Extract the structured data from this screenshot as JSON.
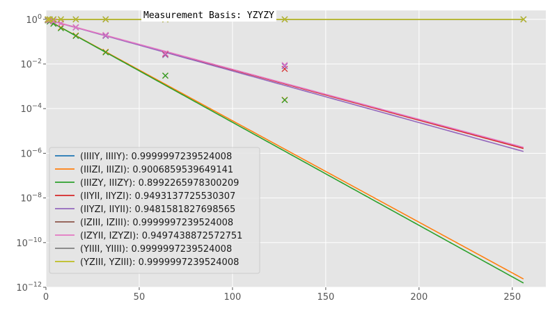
{
  "chart_data": {
    "type": "line",
    "title": "Measurement Basis: YZYZY",
    "xlabel": "",
    "ylabel": "",
    "xlim": [
      0,
      268
    ],
    "ylim": [
      1e-12,
      2.5
    ],
    "yscale": "log",
    "grid": true,
    "legend_position": "lower-left",
    "x_ticks": [
      0,
      50,
      100,
      150,
      200,
      250
    ],
    "y_ticks": [
      {
        "value": 1,
        "exp": "0"
      },
      {
        "value": 0.01,
        "exp": "−2"
      },
      {
        "value": 0.0001,
        "exp": "−4"
      },
      {
        "value": 1e-06,
        "exp": "−6"
      },
      {
        "value": 1e-08,
        "exp": "−8"
      },
      {
        "value": 1e-10,
        "exp": "−10"
      },
      {
        "value": 1e-12,
        "exp": "−12"
      }
    ],
    "y_tick_base": "10",
    "fit_x": [
      1,
      256
    ],
    "marker_x": [
      1,
      2,
      4,
      8,
      16,
      32,
      64,
      128,
      256
    ],
    "series": [
      {
        "name": "(IIIIY, IIIIY): 0.9999997239524008",
        "decay": 0.9999997239524008,
        "color": "#1f77b4",
        "markers": [
          1,
          1,
          1,
          1,
          1,
          1,
          1,
          1,
          1
        ]
      },
      {
        "name": "(IIIZI, IIIZI): 0.9006859539649141",
        "decay": 0.9006859539649141,
        "color": "#ff7f0e",
        "markers": [
          0.9,
          0.81,
          0.65,
          0.43,
          0.19,
          0.035,
          0.003,
          0.00025,
          null
        ]
      },
      {
        "name": "(IIIZY, IIIZY): 0.8992265978300209",
        "decay": 0.8992265978300209,
        "color": "#2ca02c",
        "markers": [
          0.9,
          0.8,
          0.63,
          0.4,
          0.18,
          0.033,
          0.003,
          0.00024,
          null
        ]
      },
      {
        "name": "(IIYII, IIYZI): 0.9493137725530307",
        "decay": 0.9493137725530307,
        "color": "#d62728",
        "markers": [
          0.95,
          0.9,
          0.81,
          0.66,
          0.44,
          0.19,
          0.028,
          0.006,
          null
        ]
      },
      {
        "name": "(IIYZI, IIYII): 0.9481581827698565",
        "decay": 0.9481581827698565,
        "color": "#9467bd",
        "markers": [
          0.95,
          0.9,
          0.8,
          0.65,
          0.43,
          0.18,
          0.025,
          0.008,
          null
        ]
      },
      {
        "name": "(IZIII, IZIII): 0.9999997239524008",
        "decay": 0.9999997239524008,
        "color": "#8c564b",
        "markers": [
          1,
          1,
          1,
          1,
          1,
          1,
          1,
          1,
          1
        ]
      },
      {
        "name": "(IZYII, IZYZI): 0.9497438872572751",
        "decay": 0.9497438872572751,
        "color": "#e377c2",
        "markers": [
          0.95,
          0.9,
          0.81,
          0.67,
          0.45,
          0.2,
          0.03,
          0.009,
          null
        ]
      },
      {
        "name": "(YIIII, YIIII): 0.9999997239524008",
        "decay": 0.9999997239524008,
        "color": "#7f7f7f",
        "markers": [
          1,
          1,
          1,
          1,
          1,
          1,
          1,
          1,
          1
        ]
      },
      {
        "name": "(YZIII, YZIII): 0.9999997239524008",
        "decay": 0.9999997239524008,
        "color": "#bcbd22",
        "markers": [
          1,
          1,
          1,
          1,
          1,
          1,
          1,
          1,
          1
        ]
      }
    ]
  }
}
